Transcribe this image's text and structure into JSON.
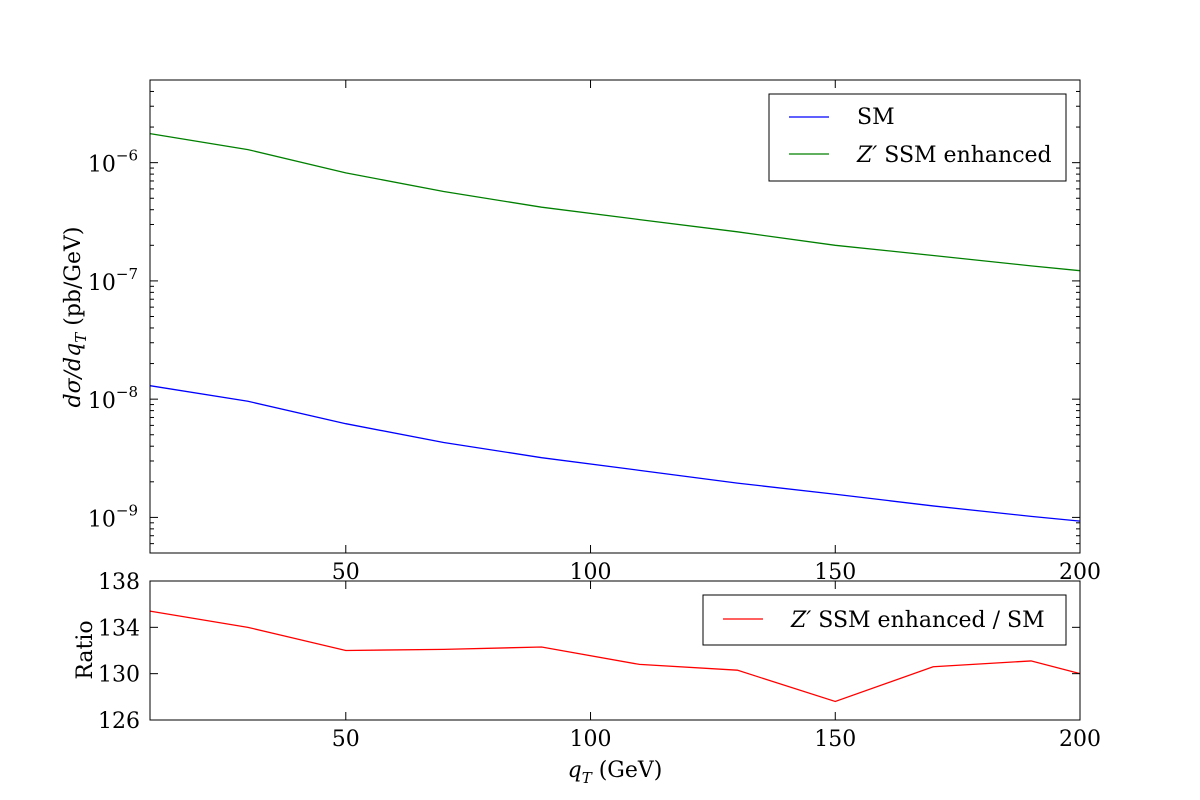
{
  "chart_data": [
    {
      "type": "line",
      "yscale": "log",
      "ylabel": {
        "math": "dσ/dq",
        "sub": "T",
        "unit": " (pb/GeV)"
      },
      "xlim": [
        10,
        200
      ],
      "ylim": [
        5e-10,
        5e-06
      ],
      "xticks": [
        50,
        100,
        150,
        200
      ],
      "xtick_labels": [
        "50",
        "100",
        "150",
        "200"
      ],
      "yticks": [
        1e-09,
        1e-08,
        1e-07,
        1e-06
      ],
      "ytick_labels": [
        {
          "base": "10",
          "exp": "−9"
        },
        {
          "base": "10",
          "exp": "−8"
        },
        {
          "base": "10",
          "exp": "−7"
        },
        {
          "base": "10",
          "exp": "−6"
        }
      ],
      "grid": false,
      "legend_position": "top-right",
      "x": [
        10,
        30,
        50,
        70,
        90,
        110,
        130,
        150,
        170,
        190,
        200
      ],
      "series": [
        {
          "name": "SM",
          "color": "#0000ff",
          "values": [
            1.3e-08,
            9.6e-09,
            6.2e-09,
            4.3e-09,
            3.2e-09,
            2.5e-09,
            1.95e-09,
            1.57e-09,
            1.25e-09,
            1.02e-09,
            9.3e-10
          ]
        },
        {
          "name_math": "Z′",
          "name": " SSM enhanced",
          "color": "#008000",
          "values": [
            1.76e-06,
            1.29e-06,
            8.2e-07,
            5.7e-07,
            4.2e-07,
            3.3e-07,
            2.6e-07,
            2e-07,
            1.64e-07,
            1.34e-07,
            1.22e-07
          ]
        }
      ]
    },
    {
      "type": "line",
      "xlabel": {
        "math": "q",
        "sub": "T",
        "unit": " (GeV)"
      },
      "ylabel": "Ratio",
      "xlim": [
        10,
        200
      ],
      "ylim": [
        126,
        138
      ],
      "xticks": [
        50,
        100,
        150,
        200
      ],
      "xtick_labels": [
        "50",
        "100",
        "150",
        "200"
      ],
      "yticks": [
        126,
        130,
        134,
        138
      ],
      "ytick_labels": [
        "126",
        "130",
        "134",
        "138"
      ],
      "grid": false,
      "legend_position": "top-right",
      "x": [
        10,
        30,
        50,
        70,
        90,
        110,
        130,
        150,
        170,
        190,
        200
      ],
      "series": [
        {
          "name_math": "Z′",
          "name": " SSM enhanced / SM",
          "color": "#ff0000",
          "values": [
            135.4,
            134.0,
            132.0,
            132.1,
            132.3,
            130.8,
            130.3,
            127.6,
            130.6,
            131.1,
            130.0
          ]
        }
      ]
    }
  ]
}
